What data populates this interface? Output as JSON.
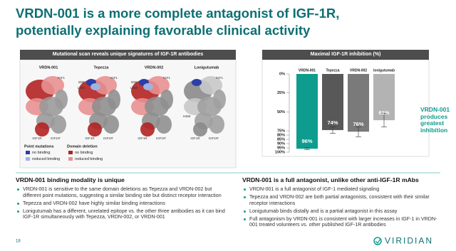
{
  "title": [
    "VRDN-001 is a more complete antagonist of IGF-1R,",
    "potentially explaining favorable clinical activity"
  ],
  "left_panel": {
    "header": "Mutational scan reveals unique signatures of IGF-1R antibodies",
    "antibodies": [
      {
        "name": "VRDN-001",
        "labels": [
          "IGF1",
          "IGF1R",
          "IGF1R'"
        ]
      },
      {
        "name": "Tepezza",
        "labels": [
          "I265",
          "L266",
          "IGF1",
          "IGF1R",
          "IGF1R'"
        ]
      },
      {
        "name": "VRDN-002",
        "labels": [
          "I265",
          "L266",
          "IGF1",
          "IGF1R",
          "IGF1R'"
        ]
      },
      {
        "name": "Lonigutumab",
        "labels": [
          "IGF1",
          "H456",
          "IGF1R",
          "IGF1R'"
        ]
      }
    ],
    "legend": {
      "point_mutations": {
        "title": "Point mutations",
        "items": [
          "no binding",
          "reduced binding"
        ]
      },
      "domain_deletion": {
        "title": "Domain deletion",
        "items": [
          "no binding",
          "reduced binding"
        ]
      }
    }
  },
  "chart_data": {
    "type": "bar",
    "title": "Maximal IGF-1R inhibition (%)",
    "categories": [
      "VRDN-001",
      "Tepezza",
      "VRDN-002",
      "lonigutumab"
    ],
    "values": [
      96,
      74,
      76,
      61
    ],
    "value_labels": [
      "96%",
      "74%",
      "76%",
      "61%"
    ],
    "errors": [
      1,
      4,
      6,
      9
    ],
    "colors": [
      "#0e9c8e",
      "#585858",
      "#7a7a7a",
      "#b3b3b3"
    ],
    "ylim": [
      0,
      100
    ],
    "inverted": true,
    "yticks": [
      {
        "value": 0,
        "label": "0%"
      },
      {
        "value": 25,
        "label": "25%"
      },
      {
        "value": 50,
        "label": "50%"
      },
      {
        "value": 75,
        "label": "75%"
      },
      {
        "value": 80,
        "label": "80%"
      },
      {
        "value": 85,
        "label": "85%"
      },
      {
        "value": 90,
        "label": "90%"
      },
      {
        "value": 95,
        "label": "95%"
      },
      {
        "value": 100,
        "label": "100%"
      }
    ]
  },
  "callout": "VRDN-001 produces greatest inhibition",
  "sections": [
    {
      "heading": "VRDN-001 binding modality is unique",
      "bullets": [
        "VRDN-001 is sensitive to the same domain deletions as Tepezza and VRDN-002 but different point mutations, suggesting a similar binding site but distinct receptor interaction",
        "Tepezza and VRDN-002 have highly similar binding interactions",
        "Lonigutumab has a different, unrelated epitope vs. the other three antibodies as it can bind IGF-1R simultaneously with Tepezza, VRDN-002, or VRDN-001"
      ]
    },
    {
      "heading": "VRDN-001 is a full antagonist, unlike other anti-IGF-1R mAbs",
      "bullets": [
        "VRDN-001 is a full antagonist of IGF-1 mediated signaling",
        "Tepezza and VRDN-002 are both partial antagonists, consistent with their similar receptor interactions",
        "Lonigutumab binds distally and is a partial antagonist in this assay",
        "Full antagonism by VRDN-001 is consistent with larger increases in IGF-1 in VRDN-001 treated volunteers vs. other published IGF-1R antibodies"
      ]
    }
  ],
  "page_number": "18",
  "logo": "VIRIDIAN"
}
